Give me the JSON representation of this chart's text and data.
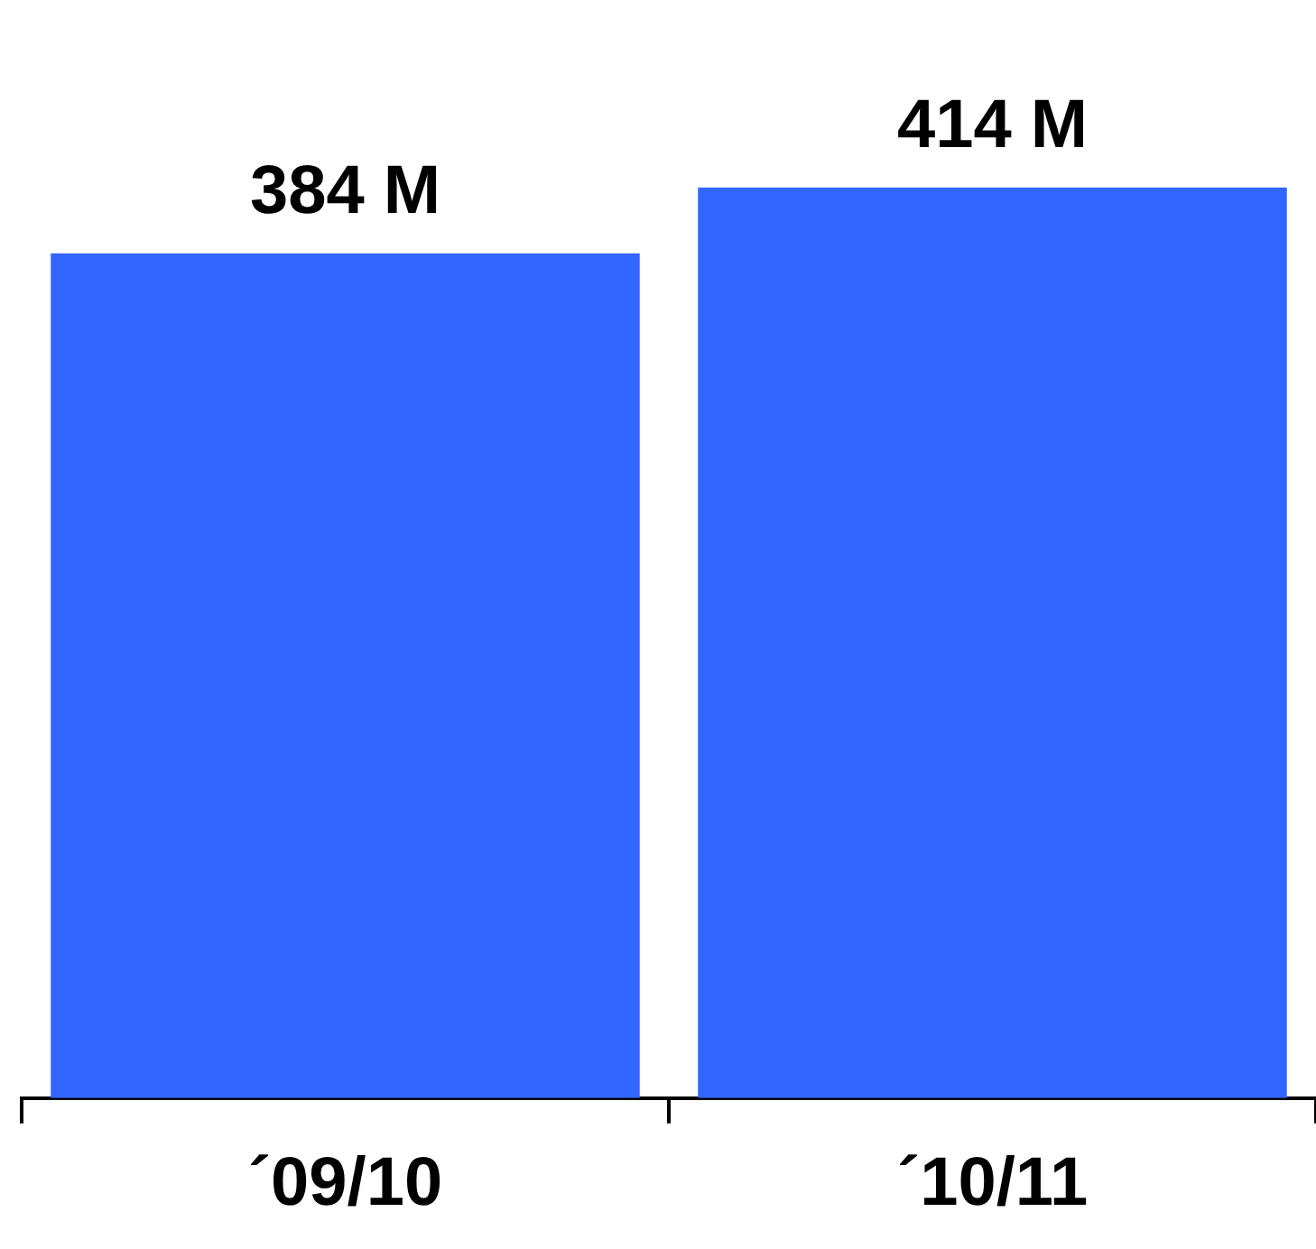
{
  "chart_data": {
    "type": "bar",
    "categories": [
      "´09/10",
      "´10/11"
    ],
    "values": [
      384,
      414
    ],
    "value_labels": [
      "384 M",
      "414 M"
    ],
    "color": "#3366ff",
    "grid": false,
    "legend": false,
    "tick_labels": "x"
  }
}
